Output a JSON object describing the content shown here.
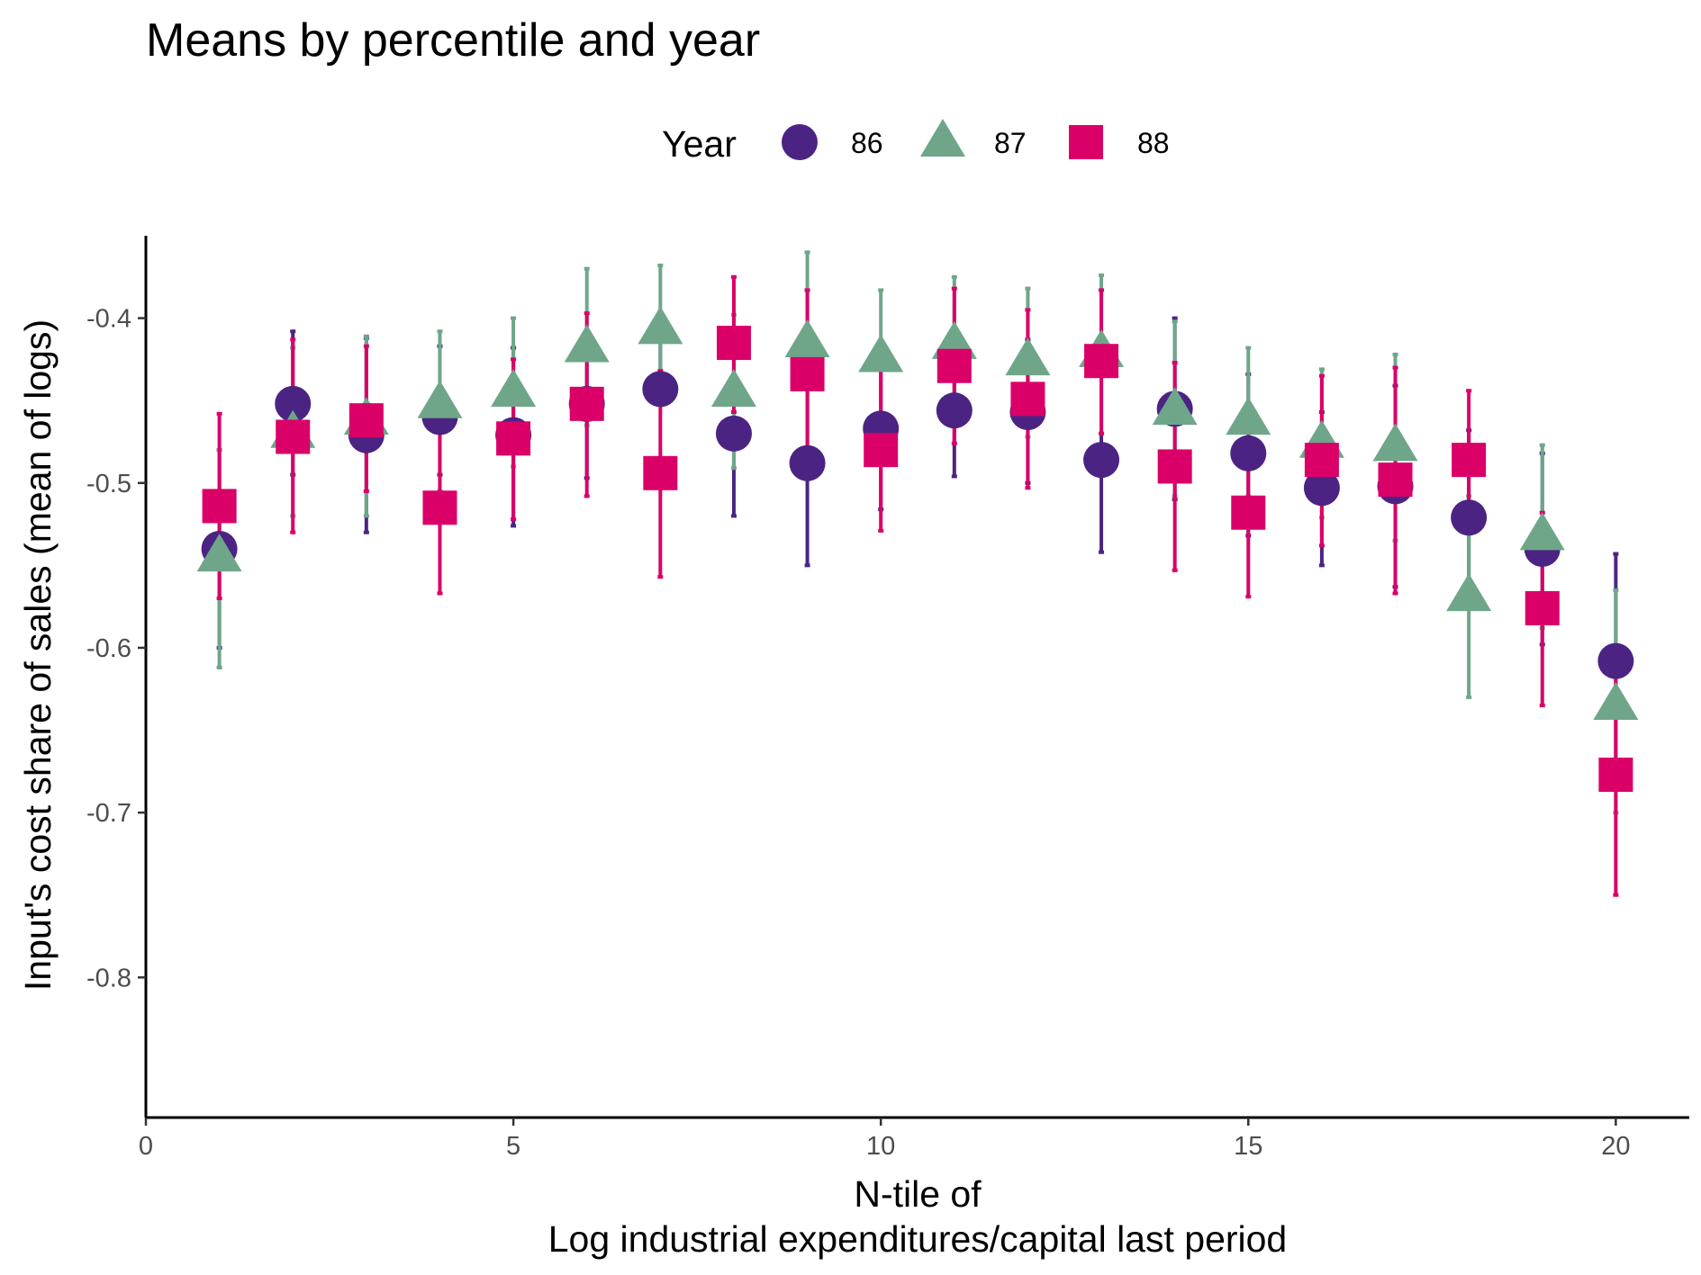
{
  "chart_data": {
    "type": "scatter",
    "title": "Means by percentile and year",
    "xlabel_line1": "N-tile of",
    "xlabel_line2": "Log industrial expenditures/capital last period",
    "ylabel": "Input's cost share of sales (mean of logs)",
    "xlim": [
      0,
      21
    ],
    "ylim": [
      -0.885,
      -0.35
    ],
    "x_ticks": [
      0,
      5,
      10,
      15,
      20
    ],
    "x_tick_labels": [
      "0",
      "5",
      "10",
      "15",
      "20"
    ],
    "y_ticks": [
      -0.4,
      -0.5,
      -0.6,
      -0.7,
      -0.8
    ],
    "y_tick_labels": [
      "-0.4",
      "-0.5",
      "-0.6",
      "-0.7",
      "-0.8"
    ],
    "grid": false,
    "legend": {
      "title": "Year",
      "position": "top"
    },
    "x": [
      1,
      2,
      3,
      4,
      5,
      6,
      7,
      8,
      9,
      10,
      11,
      12,
      13,
      14,
      15,
      16,
      17,
      18,
      19,
      20
    ],
    "series": [
      {
        "name": "86",
        "color": "#4B2483",
        "shape": "circle",
        "values": [
          -0.54,
          -0.452,
          -0.471,
          -0.46,
          -0.471,
          -0.452,
          -0.443,
          -0.47,
          -0.488,
          -0.467,
          -0.456,
          -0.457,
          -0.486,
          -0.455,
          -0.482,
          -0.503,
          -0.502,
          -0.521,
          -0.54,
          -0.608
        ],
        "lower": [
          -0.6,
          -0.495,
          -0.53,
          -0.495,
          -0.526,
          -0.497,
          -0.449,
          -0.52,
          -0.55,
          -0.516,
          -0.496,
          -0.5,
          -0.542,
          -0.51,
          -0.532,
          -0.55,
          -0.563,
          -0.574,
          -0.598,
          -0.672
        ],
        "upper": [
          -0.48,
          -0.408,
          -0.412,
          -0.417,
          -0.418,
          -0.408,
          -0.401,
          -0.421,
          -0.426,
          -0.418,
          -0.416,
          -0.413,
          -0.43,
          -0.4,
          -0.434,
          -0.457,
          -0.441,
          -0.468,
          -0.482,
          -0.543
        ]
      },
      {
        "name": "87",
        "color": "#6FA68A",
        "shape": "triangle",
        "values": [
          -0.545,
          -0.47,
          -0.462,
          -0.452,
          -0.445,
          -0.418,
          -0.407,
          -0.445,
          -0.415,
          -0.424,
          -0.416,
          -0.426,
          -0.421,
          -0.456,
          -0.462,
          -0.476,
          -0.478,
          -0.569,
          -0.532,
          -0.635
        ],
        "lower": [
          -0.612,
          -0.52,
          -0.52,
          -0.505,
          -0.49,
          -0.465,
          -0.449,
          -0.491,
          -0.487,
          -0.471,
          -0.462,
          -0.472,
          -0.47,
          -0.508,
          -0.508,
          -0.521,
          -0.535,
          -0.63,
          -0.588,
          -0.7
        ],
        "upper": [
          -0.48,
          -0.418,
          -0.411,
          -0.408,
          -0.4,
          -0.37,
          -0.368,
          -0.398,
          -0.36,
          -0.383,
          -0.375,
          -0.382,
          -0.374,
          -0.402,
          -0.418,
          -0.431,
          -0.422,
          -0.508,
          -0.477,
          -0.565
        ]
      },
      {
        "name": "88",
        "color": "#DA0068",
        "shape": "square",
        "values": [
          -0.514,
          -0.472,
          -0.462,
          -0.515,
          -0.473,
          -0.452,
          -0.494,
          -0.415,
          -0.434,
          -0.48,
          -0.429,
          -0.449,
          -0.426,
          -0.49,
          -0.518,
          -0.486,
          -0.498,
          -0.486,
          -0.576,
          -0.677
        ],
        "lower": [
          -0.57,
          -0.53,
          -0.505,
          -0.567,
          -0.522,
          -0.508,
          -0.557,
          -0.457,
          -0.484,
          -0.529,
          -0.476,
          -0.503,
          -0.47,
          -0.553,
          -0.569,
          -0.538,
          -0.567,
          -0.528,
          -0.635,
          -0.75
        ],
        "upper": [
          -0.458,
          -0.413,
          -0.417,
          -0.461,
          -0.425,
          -0.397,
          -0.432,
          -0.375,
          -0.383,
          -0.431,
          -0.382,
          -0.395,
          -0.383,
          -0.427,
          -0.466,
          -0.435,
          -0.43,
          -0.444,
          -0.518,
          -0.604
        ]
      }
    ]
  }
}
